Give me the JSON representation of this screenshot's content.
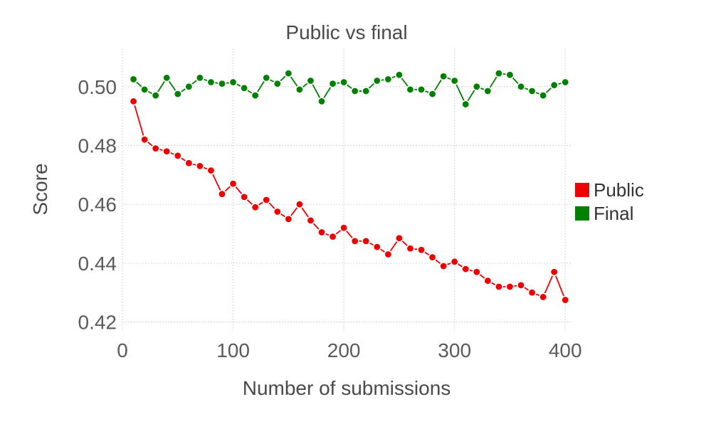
{
  "chart_data": {
    "type": "line",
    "title": "Public vs final",
    "xlabel": "Number of submissions",
    "ylabel": "Score",
    "xlim": [
      0,
      405
    ],
    "ylim": [
      0.417,
      0.513
    ],
    "x_ticks": [
      0,
      100,
      200,
      300,
      400
    ],
    "y_ticks": [
      0.42,
      0.44,
      0.46,
      0.48,
      0.5
    ],
    "x_tick_labels": [
      "0",
      "100",
      "200",
      "300",
      "400"
    ],
    "y_tick_labels": [
      "0.42",
      "0.44",
      "0.46",
      "0.48",
      "0.50"
    ],
    "grid": true,
    "legend_position": "right",
    "x": [
      10,
      20,
      30,
      40,
      50,
      60,
      70,
      80,
      90,
      100,
      110,
      120,
      130,
      140,
      150,
      160,
      170,
      180,
      190,
      200,
      210,
      220,
      230,
      240,
      250,
      260,
      270,
      280,
      290,
      300,
      310,
      320,
      330,
      340,
      350,
      360,
      370,
      380,
      390,
      400
    ],
    "series": [
      {
        "name": "Public",
        "color": "#ee0000",
        "values": [
          0.495,
          0.482,
          0.479,
          0.478,
          0.4765,
          0.474,
          0.473,
          0.4715,
          0.4635,
          0.467,
          0.4625,
          0.459,
          0.4615,
          0.4575,
          0.455,
          0.46,
          0.4545,
          0.4505,
          0.449,
          0.452,
          0.4475,
          0.4475,
          0.4455,
          0.443,
          0.4485,
          0.445,
          0.4445,
          0.442,
          0.439,
          0.4405,
          0.438,
          0.437,
          0.434,
          0.432,
          0.432,
          0.4325,
          0.43,
          0.4285,
          0.437,
          0.4275
        ]
      },
      {
        "name": "Final",
        "color": "#008000",
        "values": [
          0.5025,
          0.499,
          0.497,
          0.503,
          0.4975,
          0.5,
          0.503,
          0.5015,
          0.501,
          0.5015,
          0.4995,
          0.497,
          0.503,
          0.501,
          0.5045,
          0.499,
          0.502,
          0.495,
          0.501,
          0.5015,
          0.4985,
          0.4985,
          0.502,
          0.5025,
          0.504,
          0.499,
          0.499,
          0.4975,
          0.5035,
          0.502,
          0.494,
          0.5,
          0.4985,
          0.5045,
          0.504,
          0.5,
          0.4985,
          0.497,
          0.5005,
          0.5015
        ]
      }
    ]
  }
}
